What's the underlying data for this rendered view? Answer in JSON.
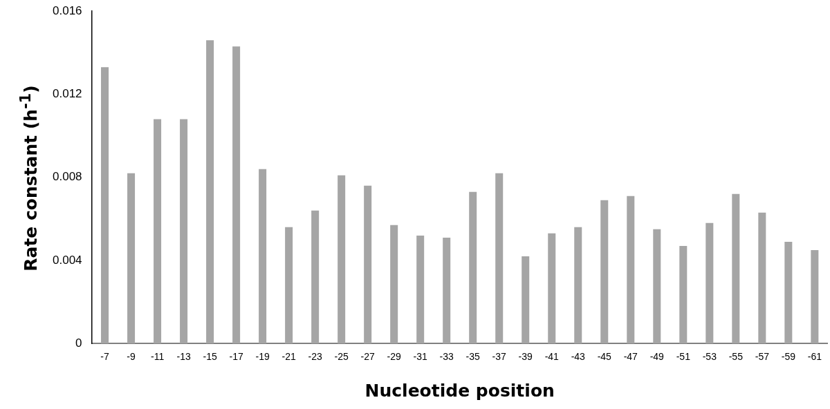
{
  "chart_data": {
    "type": "bar",
    "xlabel": "Nucleotide position",
    "ylabel": "Rate constant (h$^{-1}$)",
    "categories": [
      "-7",
      "-9",
      "-11",
      "-13",
      "-15",
      "-17",
      "-19",
      "-21",
      "-23",
      "-25",
      "-27",
      "-29",
      "-31",
      "-33",
      "-35",
      "-37",
      "-39",
      "-41",
      "-43",
      "-45",
      "-47",
      "-49",
      "-51",
      "-53",
      "-55",
      "-57",
      "-59",
      "-61"
    ],
    "values": [
      0.0133,
      0.0082,
      0.0108,
      0.0108,
      0.0146,
      0.0143,
      0.0084,
      0.0056,
      0.0064,
      0.0081,
      0.0076,
      0.0057,
      0.0052,
      0.0051,
      0.0073,
      0.0082,
      0.0042,
      0.0053,
      0.0056,
      0.0069,
      0.0071,
      0.0055,
      0.0047,
      0.0058,
      0.0072,
      0.0063,
      0.0049,
      0.0045
    ],
    "color": "#a5a5a5",
    "ylim": [
      0,
      0.016
    ],
    "yticks": [
      0,
      0.004,
      0.008,
      0.012,
      0.016
    ],
    "grid": false,
    "legend": false
  }
}
